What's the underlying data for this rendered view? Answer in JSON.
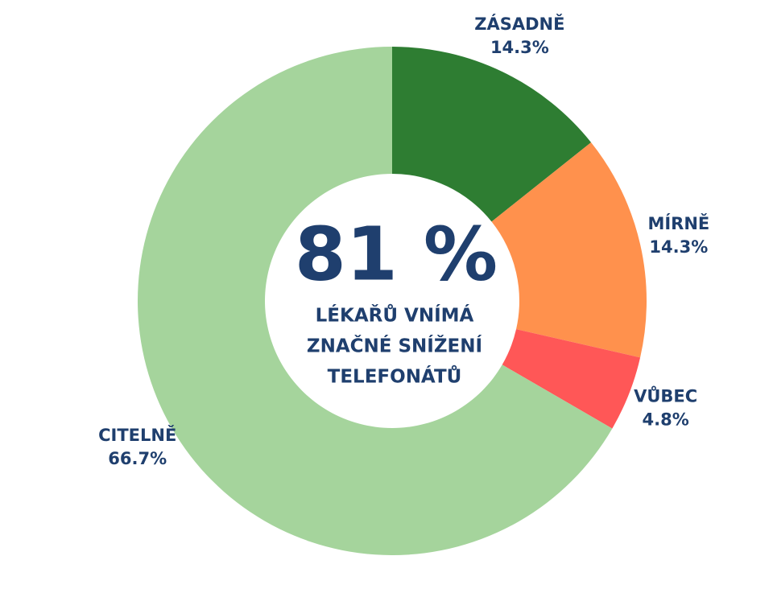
{
  "chart_data": {
    "type": "donut",
    "categories": [
      "ZÁSADNĚ",
      "MÍRNĚ",
      "VŮBEC",
      "CITELNĚ"
    ],
    "values": [
      14.3,
      14.3,
      4.8,
      66.7
    ],
    "value_labels": [
      "14.3%",
      "14.3%",
      "4.8%",
      "66.7%"
    ],
    "colors": [
      "#2e7d32",
      "#ff914d",
      "#ff5757",
      "#a5d49c"
    ],
    "center_value": "81 %",
    "center_caption": [
      "LÉKAŘŮ VNÍMÁ",
      "ZNAČNÉ SNÍŽENÍ",
      "TELEFONÁTŮ"
    ]
  }
}
